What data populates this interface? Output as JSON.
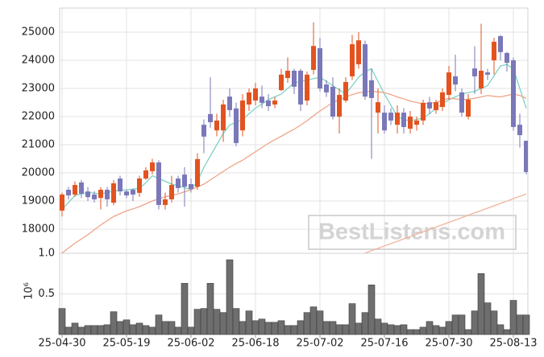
{
  "chart_data": [
    {
      "type": "candlestick",
      "up_color": "#e2531f",
      "down_color": "#7a78b8",
      "open": [
        18660,
        19400,
        19230,
        19660,
        19340,
        19230,
        19110,
        19400,
        18940,
        19800,
        19340,
        19400,
        19290,
        19800,
        20060,
        20370,
        18860,
        19060,
        19800,
        19940,
        19600,
        19510,
        21710,
        22090,
        21510,
        21510,
        22710,
        22290,
        21510,
        22430,
        22570,
        22710,
        22570,
        22430,
        22940,
        23370,
        23630,
        23630,
        22570,
        23660,
        24430,
        23140,
        23060,
        22000,
        22570,
        23430,
        23860,
        24570,
        23290,
        22140,
        22140,
        22140,
        21710,
        22140,
        21570,
        21710,
        21860,
        22510,
        22230,
        22340,
        22770,
        23430,
        22860,
        22000,
        23710,
        23000,
        23570,
        24000,
        24860,
        24260,
        24000,
        21710,
        21140
      ],
      "high": [
        19300,
        19500,
        19700,
        19750,
        19500,
        19350,
        19500,
        19500,
        19750,
        19900,
        19400,
        19450,
        19900,
        20200,
        20500,
        20450,
        19300,
        19900,
        19900,
        20200,
        19800,
        20700,
        21900,
        23400,
        22100,
        22600,
        23000,
        22500,
        22800,
        23000,
        23200,
        23100,
        22800,
        22700,
        23700,
        24100,
        23700,
        23700,
        23600,
        25350,
        24800,
        23300,
        23400,
        23000,
        23400,
        24900,
        25000,
        24700,
        23700,
        23000,
        22400,
        22300,
        22400,
        22300,
        22200,
        22000,
        22600,
        22700,
        22600,
        23000,
        23800,
        24200,
        23000,
        22800,
        24500,
        25300,
        23700,
        24800,
        24900,
        24300,
        24100,
        22100,
        21150
      ],
      "low": [
        18450,
        19050,
        19150,
        19100,
        19000,
        18950,
        18700,
        18800,
        18850,
        19200,
        19100,
        19000,
        19150,
        19750,
        19950,
        18700,
        18700,
        18950,
        19300,
        18800,
        19300,
        19400,
        20700,
        21600,
        21300,
        21100,
        22000,
        20950,
        21300,
        22200,
        22400,
        22300,
        22200,
        22300,
        22900,
        23200,
        22800,
        22200,
        22400,
        23500,
        22900,
        22700,
        21900,
        21400,
        22500,
        23300,
        23700,
        22600,
        20500,
        21400,
        21400,
        21700,
        21400,
        21400,
        21400,
        21500,
        21700,
        22100,
        22100,
        22200,
        22600,
        22900,
        22000,
        21900,
        22800,
        22800,
        23300,
        23500,
        24000,
        23600,
        21500,
        20900,
        19950
      ],
      "close": [
        19230,
        19200,
        19570,
        19260,
        19140,
        19060,
        19400,
        19060,
        19630,
        19340,
        19200,
        19230,
        19800,
        20090,
        20370,
        18860,
        19060,
        19570,
        19460,
        19510,
        19430,
        20490,
        21290,
        21800,
        21860,
        22430,
        22230,
        21060,
        22570,
        22860,
        23000,
        22490,
        22370,
        22570,
        23490,
        23630,
        23060,
        22430,
        23490,
        24510,
        23000,
        22860,
        22000,
        22770,
        23230,
        24570,
        24710,
        22710,
        22660,
        22510,
        21510,
        21860,
        22140,
        21630,
        22000,
        21860,
        22490,
        22290,
        22510,
        22860,
        23570,
        23140,
        22140,
        22600,
        23430,
        23630,
        23490,
        24660,
        24290,
        23910,
        21630,
        21340,
        20030
      ],
      "lines": [
        {
          "color": "#7fd3c3",
          "values": [
            18700,
            18950,
            19200,
            19250,
            19300,
            19280,
            19250,
            19300,
            19350,
            19380,
            19400,
            19420,
            19450,
            19650,
            19900,
            19800,
            19700,
            19600,
            19550,
            19480,
            19400,
            19700,
            20200,
            20600,
            21000,
            21400,
            21700,
            21800,
            21900,
            22100,
            22300,
            22450,
            22600,
            22700,
            22800,
            23000,
            23200,
            23250,
            23300,
            23350,
            23400,
            23250,
            23100,
            22950,
            22800,
            23100,
            23400,
            23600,
            23700,
            23250,
            22800,
            22400,
            22000,
            21900,
            21850,
            21900,
            21950,
            22100,
            22300,
            22450,
            22600,
            22700,
            22800,
            22850,
            22900,
            23000,
            23100,
            23450,
            23800,
            23850,
            23700,
            23000,
            22300
          ]
        },
        {
          "color": "#eda587",
          "values": [
            17150,
            17330,
            17500,
            17650,
            17800,
            17980,
            18150,
            18300,
            18450,
            18550,
            18650,
            18720,
            18800,
            18900,
            19000,
            19080,
            19150,
            19200,
            19250,
            19330,
            19400,
            19500,
            19600,
            19750,
            19900,
            20050,
            20200,
            20330,
            20450,
            20600,
            20750,
            20900,
            21050,
            21180,
            21300,
            21430,
            21550,
            21700,
            21850,
            22030,
            22200,
            22350,
            22500,
            22600,
            22700,
            22780,
            22850,
            22880,
            22900,
            22880,
            22850,
            22780,
            22700,
            22630,
            22550,
            22500,
            22450,
            22480,
            22500,
            22580,
            22650,
            22630,
            22600,
            22620,
            22650,
            22700,
            22750,
            22720,
            22700,
            22750,
            22800,
            22750,
            22650
          ]
        },
        {
          "color": "#f0b49c",
          "values": [
            null,
            null,
            null,
            null,
            null,
            null,
            null,
            null,
            null,
            null,
            null,
            null,
            null,
            null,
            null,
            null,
            null,
            null,
            null,
            null,
            null,
            null,
            null,
            null,
            null,
            null,
            null,
            null,
            null,
            null,
            null,
            null,
            null,
            null,
            null,
            null,
            null,
            null,
            null,
            null,
            null,
            null,
            null,
            null,
            null,
            null,
            null,
            17150,
            17234,
            17318,
            17402,
            17486,
            17570,
            17654,
            17738,
            17822,
            17906,
            17990,
            18074,
            18158,
            18242,
            18326,
            18410,
            18494,
            18578,
            18662,
            18746,
            18830,
            18914,
            18998,
            19082,
            19166,
            19250
          ]
        }
      ],
      "ylim": [
        17143,
        25857
      ],
      "yticks": [
        18000,
        19000,
        20000,
        21000,
        22000,
        23000,
        24000,
        25000
      ],
      "grid": true,
      "watermark": "BestListens.com"
    },
    {
      "type": "bar",
      "ylabel": "10⁶",
      "color": "#6e6e6e",
      "categories": [
        "25-04-30",
        null,
        null,
        null,
        null,
        null,
        null,
        null,
        null,
        null,
        "25-05-19",
        null,
        null,
        null,
        null,
        null,
        null,
        null,
        null,
        null,
        "25-06-02",
        null,
        null,
        null,
        null,
        null,
        null,
        null,
        null,
        null,
        "25-06-18",
        null,
        null,
        null,
        null,
        null,
        null,
        null,
        null,
        null,
        "25-07-02",
        null,
        null,
        null,
        null,
        null,
        null,
        null,
        null,
        null,
        "25-07-16",
        null,
        null,
        null,
        null,
        null,
        null,
        null,
        null,
        null,
        "25-07-30",
        null,
        null,
        null,
        null,
        null,
        null,
        null,
        null,
        null,
        "25-08-13",
        null,
        null
      ],
      "values": [
        0.32,
        0.09,
        0.14,
        0.09,
        0.11,
        0.11,
        0.11,
        0.12,
        0.28,
        0.16,
        0.18,
        0.12,
        0.14,
        0.11,
        0.09,
        0.24,
        0.16,
        0.16,
        0.09,
        0.63,
        0.09,
        0.31,
        0.32,
        0.63,
        0.31,
        0.27,
        0.92,
        0.32,
        0.16,
        0.29,
        0.17,
        0.19,
        0.15,
        0.15,
        0.17,
        0.11,
        0.11,
        0.17,
        0.27,
        0.34,
        0.29,
        0.16,
        0.16,
        0.12,
        0.12,
        0.38,
        0.14,
        0.27,
        0.61,
        0.19,
        0.14,
        0.12,
        0.11,
        0.12,
        0.06,
        0.06,
        0.09,
        0.16,
        0.11,
        0.09,
        0.16,
        0.24,
        0.24,
        0.06,
        0.29,
        0.75,
        0.39,
        0.29,
        0.12,
        0.06,
        0.42,
        0.24,
        0.24
      ],
      "ylim": [
        0,
        1
      ],
      "yticks": [
        0.5,
        {
          "value": 1,
          "label": "1.0"
        }
      ],
      "grid": true
    }
  ]
}
